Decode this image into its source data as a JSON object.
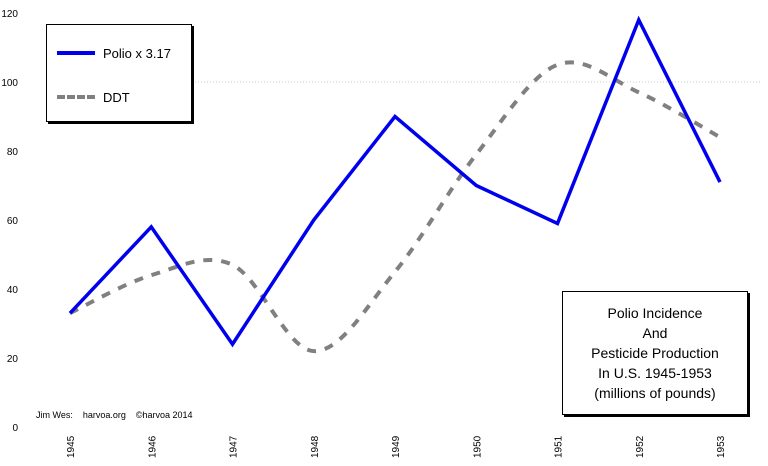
{
  "chart_data": {
    "type": "line",
    "categories": [
      "1945",
      "1946",
      "1947",
      "1948",
      "1949",
      "1950",
      "1951",
      "1952",
      "1953"
    ],
    "series": [
      {
        "name": "Polio x 3.17",
        "values": [
          33,
          58,
          24,
          60,
          90,
          70,
          59,
          118,
          71
        ],
        "color": "#0000ee",
        "style": "solid"
      },
      {
        "name": "DDT",
        "values": [
          33,
          44,
          47,
          22,
          45,
          79,
          105,
          97,
          84
        ],
        "color": "#808080",
        "style": "dashed"
      }
    ],
    "ylim": [
      0,
      120
    ],
    "yticks": [
      "0",
      "20",
      "40",
      "60",
      "80",
      "100",
      "120"
    ],
    "grid": "horizontal line at 100 only",
    "legend_position": "top-left",
    "title_lines": [
      "Polio Incidence",
      "And",
      "Pesticide Production",
      "In U.S. 1945-1953",
      "(millions of pounds)"
    ],
    "credit": "Jim Wes:    harvoa.org    ©harvoa 2014"
  }
}
